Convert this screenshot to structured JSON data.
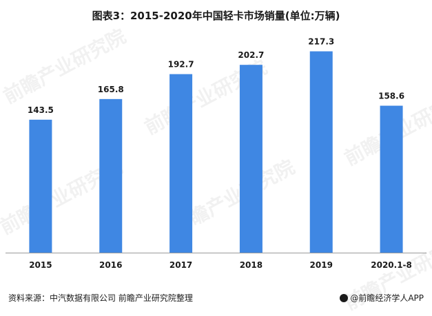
{
  "header": {
    "title": "图表3：2015-2020年中国轻卡市场销量(单位:万辆)"
  },
  "chart_data": {
    "type": "bar",
    "categories": [
      "2015",
      "2016",
      "2017",
      "2018",
      "2019",
      "2020.1-8"
    ],
    "values": [
      143.5,
      165.8,
      192.7,
      202.7,
      217.3,
      158.6
    ],
    "value_labels": [
      "143.5",
      "165.8",
      "192.7",
      "202.7",
      "217.3",
      "158.6"
    ],
    "ylim": [
      0,
      240
    ],
    "grid": false,
    "legend": "none",
    "bar_color": "#3f87e3"
  },
  "footer": {
    "source": "资料来源：中汽数据有限公司 前瞻产业研究院整理",
    "brand": "@前瞻经济学人APP"
  },
  "watermark": {
    "text": "前瞻产业研究院"
  }
}
